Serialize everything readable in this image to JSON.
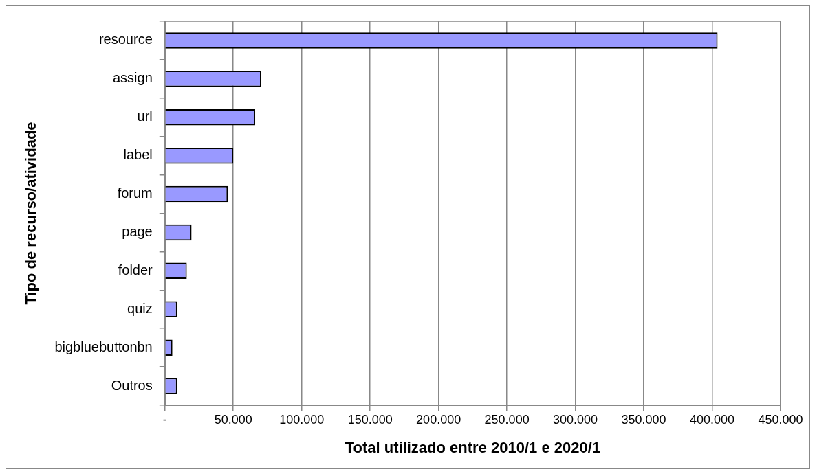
{
  "chart_data": {
    "type": "bar",
    "orientation": "horizontal",
    "xlabel": "Total utilizado entre 2010/1 e 2020/1",
    "ylabel": "Tipo de recurso/atividade",
    "categories": [
      "resource",
      "assign",
      "url",
      "label",
      "forum",
      "page",
      "folder",
      "quiz",
      "bigbluebuttonbn",
      "Outros"
    ],
    "series": [
      {
        "color": "#9999ff",
        "values": [
          404000,
          70500,
          66000,
          50000,
          46000,
          19500,
          16000,
          9000,
          5500,
          9000
        ]
      }
    ],
    "xlim": [
      0,
      450000
    ],
    "xticks": [
      {
        "value": 0,
        "label": "-"
      },
      {
        "value": 50000,
        "label": "50.000"
      },
      {
        "value": 100000,
        "label": "100.000"
      },
      {
        "value": 150000,
        "label": "150.000"
      },
      {
        "value": 200000,
        "label": "200.000"
      },
      {
        "value": 250000,
        "label": "250.000"
      },
      {
        "value": 300000,
        "label": "300.000"
      },
      {
        "value": 350000,
        "label": "350.000"
      },
      {
        "value": 400000,
        "label": "400.000"
      },
      {
        "value": 450000,
        "label": "450.000"
      }
    ],
    "grid": "x",
    "legend": false
  }
}
